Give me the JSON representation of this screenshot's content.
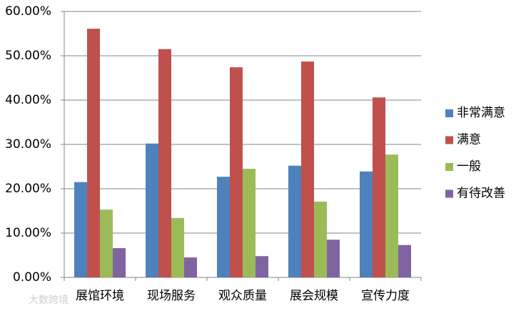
{
  "chart_data": {
    "type": "bar",
    "categories": [
      "展馆环境",
      "现场服务",
      "观众质量",
      "展会规模",
      "宣传力度"
    ],
    "series": [
      {
        "name": "非常满意",
        "color": "#4f81bd",
        "values": [
          21.5,
          30.2,
          22.7,
          25.2,
          23.9
        ]
      },
      {
        "name": "满意",
        "color": "#c0504d",
        "values": [
          56.1,
          51.5,
          47.4,
          48.7,
          40.6
        ]
      },
      {
        "name": "一般",
        "color": "#9bbb59",
        "values": [
          15.3,
          13.4,
          24.5,
          17.1,
          27.7
        ]
      },
      {
        "name": "有待改善",
        "color": "#8064a2",
        "values": [
          6.6,
          4.5,
          4.8,
          8.5,
          7.3
        ]
      }
    ],
    "ylim": [
      0,
      60
    ],
    "yticks": [
      {
        "value": 0,
        "label": "0.00%"
      },
      {
        "value": 10,
        "label": "10.00%"
      },
      {
        "value": 20,
        "label": "20.00%"
      },
      {
        "value": 30,
        "label": "30.00%"
      },
      {
        "value": 40,
        "label": "40.00%"
      },
      {
        "value": 50,
        "label": "50.00%"
      },
      {
        "value": 60,
        "label": "60.00%"
      }
    ],
    "grid": true,
    "legend": "right",
    "watermark": "大数跨境"
  }
}
